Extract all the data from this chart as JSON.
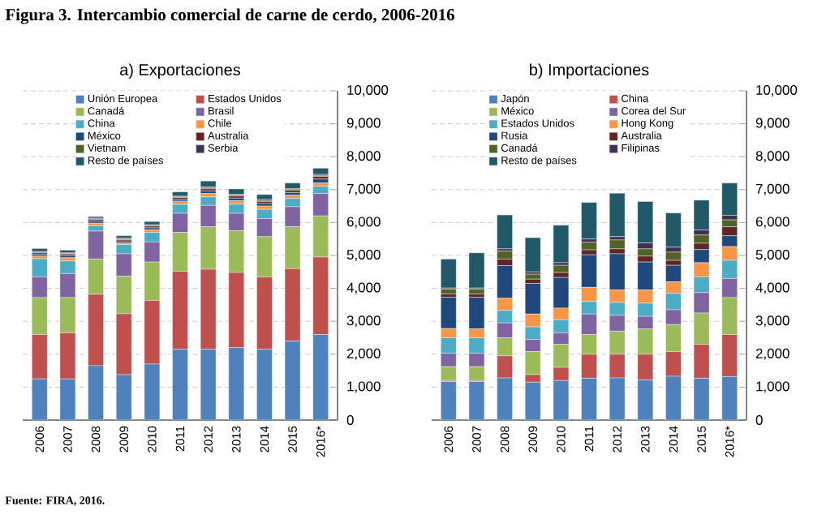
{
  "chart_data": [
    {
      "type": "bar",
      "stacked": true,
      "title": "a) Exportaciones",
      "annotations": [
        "Figura 3. Intercambio comercial de carne de cerdo, 2006-2016",
        "Fuente: FIRA, 2016."
      ],
      "categories": [
        "2006",
        "2007",
        "2008",
        "2009",
        "2010",
        "2011",
        "2012",
        "2013",
        "2014",
        "2015",
        "2016*"
      ],
      "ylim": [
        0,
        10000
      ],
      "yticks": [
        0,
        {
          "value": 1000,
          "label": "1,000"
        },
        {
          "value": 2000,
          "label": "2,000"
        },
        {
          "value": 3000,
          "label": "3,000"
        },
        {
          "value": 4000,
          "label": "4,000"
        },
        {
          "value": 5000,
          "label": "5,000"
        },
        {
          "value": 6000,
          "label": "6,000"
        },
        {
          "value": 7000,
          "label": "7,000"
        },
        {
          "value": 8000,
          "label": "8,000"
        },
        {
          "value": 9000,
          "label": "9,000"
        },
        {
          "value": 10000,
          "label": "10,000"
        }
      ],
      "grid": "y",
      "legend": "top",
      "series": [
        {
          "name": "Unión Europea",
          "color": "#4f81bd",
          "values": [
            1250,
            1250,
            1650,
            1380,
            1700,
            2150,
            2150,
            2200,
            2150,
            2400,
            2600
          ]
        },
        {
          "name": "Estados Unidos",
          "color": "#c0504d",
          "values": [
            1350,
            1400,
            2170,
            1850,
            1930,
            2370,
            2430,
            2280,
            2200,
            2200,
            2350
          ]
        },
        {
          "name": "Canadá",
          "color": "#9bbb59",
          "values": [
            1120,
            1070,
            1070,
            1140,
            1170,
            1180,
            1290,
            1270,
            1220,
            1270,
            1250
          ]
        },
        {
          "name": "Brasil",
          "color": "#8064a2",
          "values": [
            630,
            730,
            850,
            680,
            610,
            580,
            650,
            530,
            550,
            610,
            680
          ]
        },
        {
          "name": "China",
          "color": "#4bacc6",
          "values": [
            550,
            380,
            160,
            280,
            290,
            270,
            260,
            280,
            280,
            250,
            220
          ]
        },
        {
          "name": "Chile",
          "color": "#f79646",
          "values": [
            80,
            100,
            80,
            50,
            80,
            100,
            100,
            100,
            100,
            100,
            100
          ]
        },
        {
          "name": "México",
          "color": "#1f497d",
          "values": [
            60,
            60,
            60,
            60,
            60,
            60,
            80,
            80,
            80,
            80,
            120
          ]
        },
        {
          "name": "Australia",
          "color": "#632523",
          "values": [
            40,
            50,
            50,
            40,
            50,
            50,
            60,
            60,
            60,
            60,
            80
          ]
        },
        {
          "name": "Vietnam",
          "color": "#4f6228",
          "values": [
            20,
            20,
            20,
            20,
            20,
            20,
            30,
            30,
            30,
            30,
            30
          ]
        },
        {
          "name": "Serbia",
          "color": "#3f3151",
          "values": [
            20,
            20,
            20,
            20,
            20,
            20,
            30,
            30,
            30,
            30,
            30
          ]
        },
        {
          "name": "Resto de países",
          "color": "#215968",
          "values": [
            90,
            80,
            50,
            80,
            100,
            130,
            180,
            160,
            150,
            170,
            190
          ]
        }
      ]
    },
    {
      "type": "bar",
      "stacked": true,
      "title": "b) Importaciones",
      "categories": [
        "2006",
        "2007",
        "2008",
        "2009",
        "2010",
        "2011",
        "2012",
        "2013",
        "2014",
        "2015",
        "2016*"
      ],
      "ylim": [
        0,
        10000
      ],
      "yticks": [
        0,
        {
          "value": 1000,
          "label": "1,000"
        },
        {
          "value": 2000,
          "label": "2,000"
        },
        {
          "value": 3000,
          "label": "3,000"
        },
        {
          "value": 4000,
          "label": "4,000"
        },
        {
          "value": 5000,
          "label": "5,000"
        },
        {
          "value": 6000,
          "label": "6,000"
        },
        {
          "value": 7000,
          "label": "7,000"
        },
        {
          "value": 8000,
          "label": "8,000"
        },
        {
          "value": 9000,
          "label": "9,000"
        },
        {
          "value": 10000,
          "label": "10,000"
        }
      ],
      "grid": "y",
      "legend": "top",
      "series": [
        {
          "name": "Japón",
          "color": "#4f81bd",
          "values": [
            1170,
            1170,
            1280,
            1150,
            1200,
            1270,
            1280,
            1220,
            1330,
            1270,
            1320
          ]
        },
        {
          "name": "China",
          "color": "#c0504d",
          "values": [
            30,
            30,
            670,
            230,
            400,
            730,
            720,
            780,
            750,
            1030,
            1280
          ]
        },
        {
          "name": "México",
          "color": "#9bbb59",
          "values": [
            420,
            420,
            550,
            700,
            700,
            600,
            700,
            770,
            820,
            950,
            1120
          ]
        },
        {
          "name": "Corea del Sur",
          "color": "#8064a2",
          "values": [
            410,
            410,
            450,
            370,
            350,
            620,
            480,
            380,
            450,
            620,
            580
          ]
        },
        {
          "name": "Estados Unidos",
          "color": "#4bacc6",
          "values": [
            470,
            470,
            380,
            380,
            400,
            380,
            390,
            400,
            500,
            480,
            550
          ]
        },
        {
          "name": "Hong Kong",
          "color": "#f79646",
          "values": [
            280,
            270,
            370,
            390,
            350,
            430,
            380,
            400,
            350,
            430,
            420
          ]
        },
        {
          "name": "Rusia",
          "color": "#1f497d",
          "values": [
            950,
            960,
            990,
            930,
            930,
            990,
            1100,
            850,
            500,
            400,
            330
          ]
        },
        {
          "name": "Australia",
          "color": "#632523",
          "values": [
            100,
            100,
            200,
            130,
            150,
            150,
            150,
            180,
            150,
            190,
            270
          ]
        },
        {
          "name": "Canadá",
          "color": "#4f6228",
          "values": [
            150,
            150,
            240,
            150,
            220,
            230,
            270,
            220,
            250,
            250,
            210
          ]
        },
        {
          "name": "Filipinas",
          "color": "#3f3151",
          "values": [
            30,
            30,
            70,
            70,
            80,
            100,
            100,
            180,
            150,
            150,
            140
          ]
        },
        {
          "name": "Resto de países",
          "color": "#215968",
          "values": [
            880,
            1070,
            1030,
            1040,
            1140,
            1110,
            1320,
            1260,
            1040,
            910,
            980
          ]
        }
      ]
    }
  ]
}
